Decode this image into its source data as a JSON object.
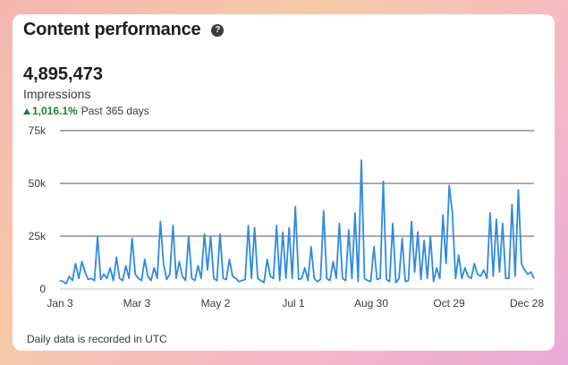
{
  "card": {
    "title": "Content performance",
    "help_glyph": "?",
    "metric_value": "4,895,473",
    "metric_label": "Impressions",
    "change_pct": "1,016.1%",
    "change_period": "Past 365 days",
    "footer_note": "Daily data is recorded in UTC"
  },
  "colors": {
    "line": "#2f8ae0",
    "up": "#1a7f37",
    "grid": "#1d1d1f"
  },
  "chart_data": {
    "type": "line",
    "title": "",
    "xlabel": "",
    "ylabel": "",
    "ylim": [
      0,
      75000
    ],
    "grid": true,
    "y_ticks": [
      0,
      25000,
      50000,
      75000
    ],
    "y_tick_labels": [
      "0",
      "25k",
      "50k",
      "75k"
    ],
    "x_tick_labels": [
      "Jan 3",
      "Mar 3",
      "May 2",
      "Jul 1",
      "Aug 30",
      "Oct 29",
      "Dec 28"
    ],
    "series": [
      {
        "values": [
          4000,
          3500,
          2500,
          6000,
          4000,
          12000,
          5000,
          13000,
          8000,
          4500,
          5000,
          4000,
          25000,
          4500,
          7000,
          5000,
          10000,
          4000,
          15000,
          5000,
          4000,
          11000,
          5000,
          24000,
          7000,
          5000,
          4000,
          14000,
          6000,
          4000,
          10000,
          5000,
          32000,
          12000,
          4500,
          7000,
          30000,
          5000,
          13000,
          6000,
          4000,
          25000,
          5000,
          4000,
          11000,
          5000,
          26000,
          9000,
          25000,
          5000,
          4000,
          26000,
          5000,
          4500,
          14000,
          6000,
          5000,
          3500,
          4000,
          4500,
          30000,
          5000,
          29000,
          5000,
          4000,
          3000,
          14000,
          6000,
          5000,
          30000,
          4000,
          27000,
          5000,
          29000,
          5000,
          39000,
          4500,
          5000,
          10000,
          4000,
          20000,
          5000,
          3500,
          4500,
          37000,
          5000,
          4000,
          13000,
          5000,
          31000,
          5000,
          4000,
          28000,
          5000,
          36000,
          3500,
          61000,
          5000,
          4000,
          3500,
          20000,
          4500,
          5000,
          51000,
          4500,
          3500,
          31000,
          3000,
          5000,
          24000,
          3500,
          4000,
          32000,
          8000,
          27000,
          4500,
          23000,
          5000,
          25000,
          3500,
          10000,
          5000,
          35000,
          12000,
          49000,
          36000,
          5000,
          16000,
          5000,
          10000,
          6000,
          5000,
          12000,
          7000,
          6000,
          9000,
          5000,
          36000,
          6000,
          33000,
          8000,
          31000,
          5000,
          5000,
          40000,
          6000,
          47000,
          12000,
          9000,
          7000,
          8000,
          5000
        ]
      }
    ]
  }
}
